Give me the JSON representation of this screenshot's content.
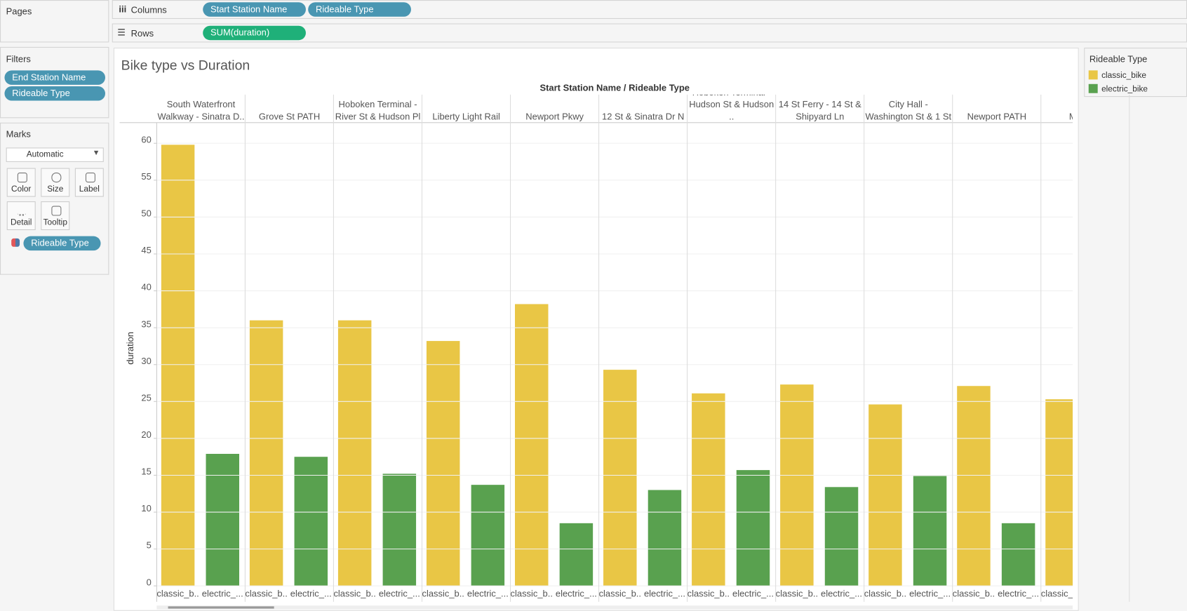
{
  "ui": {
    "pages_label": "Pages",
    "columns_label": "Columns",
    "columns_pills": [
      "Start Station Name",
      "Rideable Type"
    ],
    "rows_label": "Rows",
    "rows_pills": [
      "SUM(duration)"
    ],
    "filters_label": "Filters",
    "filters": [
      "End Station Name",
      "Rideable Type"
    ],
    "marks_label": "Marks",
    "mark_type": "Automatic",
    "mark_buttons": [
      "Color",
      "Size",
      "Label",
      "Detail",
      "Tooltip"
    ],
    "marks_pill": "Rideable Type"
  },
  "chart_data": {
    "type": "bar",
    "title": "Bike type vs Duration",
    "header_title": "Start Station Name / Rideable Type",
    "y_label": "duration",
    "categories": [
      "South Waterfront\nWalkway - Sinatra D..",
      "Grove St PATH",
      "Hoboken Terminal -\nRiver St & Hudson Pl",
      "Liberty Light Rail",
      "Newport Pkwy",
      "12 St & Sinatra Dr N",
      "Hoboken Terminal -\nHudson St & Hudson ..",
      "14 St Ferry - 14 St &\nShipyard Ln",
      "City Hall -\nWashington St & 1 St",
      "Newport PATH",
      "Marin Li"
    ],
    "series": [
      {
        "name": "classic_bike",
        "color": "#e9c645",
        "values": [
          59.8,
          36.0,
          36.0,
          33.2,
          38.2,
          29.3,
          26.1,
          27.3,
          24.6,
          27.1,
          25.3
        ]
      },
      {
        "name": "electric_bike",
        "color": "#59a14f",
        "values": [
          17.9,
          17.5,
          15.2,
          13.7,
          8.5,
          13.0,
          15.7,
          13.4,
          14.9,
          8.5,
          null
        ]
      }
    ],
    "sub_labels": [
      "classic_b..",
      "electric_..."
    ],
    "legend_title": "Rideable Type",
    "ylim": [
      0,
      62.8
    ],
    "yticks": [
      0,
      5,
      10,
      15,
      20,
      25,
      30,
      35,
      40,
      45,
      50,
      55,
      60
    ],
    "grid": true
  }
}
